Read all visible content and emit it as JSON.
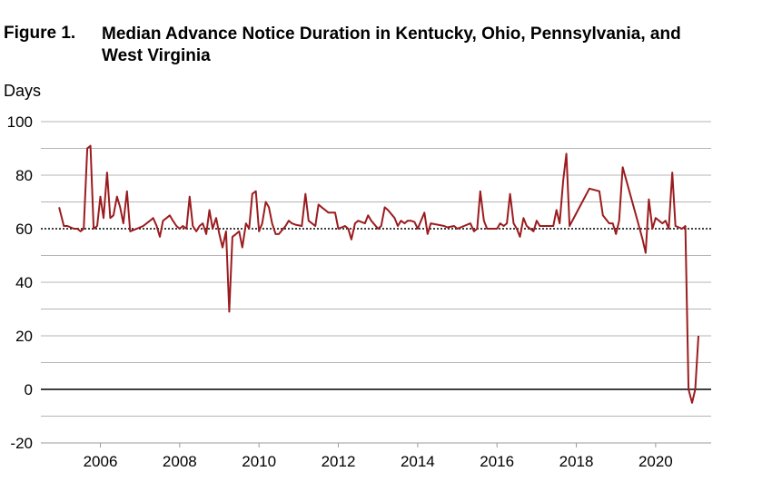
{
  "figure": {
    "label": "Figure 1.",
    "title": "Median Advance Notice Duration in Kentucky, Ohio, Pennsylvania, and West Virginia"
  },
  "chart_data": {
    "type": "line",
    "title": "Median Advance Notice Duration in Kentucky, Ohio, Pennsylvania, and West Virginia",
    "ylabel": "Days",
    "xlabel": "",
    "ylim": [
      -20,
      100
    ],
    "xlim": [
      2004.5,
      2020.9
    ],
    "yticks": [
      100,
      80,
      60,
      40,
      20,
      0,
      -20
    ],
    "xticks": [
      "2006",
      "2008",
      "2010",
      "2012",
      "2014",
      "2016",
      "2018",
      "2020"
    ],
    "grid": true,
    "reference_lines": [
      {
        "y": 60,
        "style": "dotted"
      },
      {
        "y": 0,
        "style": "solid"
      }
    ],
    "series": [
      {
        "color": "#9b1c1f",
        "points": [
          [
            2004.96,
            68
          ],
          [
            2005.08,
            61
          ],
          [
            2005.17,
            61
          ],
          [
            2005.25,
            60.5
          ],
          [
            2005.33,
            60
          ],
          [
            2005.42,
            60
          ],
          [
            2005.5,
            59
          ],
          [
            2005.58,
            60
          ],
          [
            2005.67,
            90
          ],
          [
            2005.75,
            91
          ],
          [
            2005.83,
            60
          ],
          [
            2005.92,
            61
          ],
          [
            2006.0,
            72
          ],
          [
            2006.08,
            64
          ],
          [
            2006.17,
            81
          ],
          [
            2006.25,
            64
          ],
          [
            2006.33,
            65
          ],
          [
            2006.42,
            72
          ],
          [
            2006.5,
            68
          ],
          [
            2006.58,
            62
          ],
          [
            2006.67,
            74
          ],
          [
            2006.75,
            59
          ],
          [
            2006.92,
            60
          ],
          [
            2007.08,
            61
          ],
          [
            2007.25,
            63
          ],
          [
            2007.33,
            64
          ],
          [
            2007.42,
            61
          ],
          [
            2007.5,
            57
          ],
          [
            2007.58,
            63
          ],
          [
            2007.67,
            64
          ],
          [
            2007.75,
            65
          ],
          [
            2007.83,
            63
          ],
          [
            2007.92,
            61
          ],
          [
            2008.0,
            60
          ],
          [
            2008.08,
            61
          ],
          [
            2008.17,
            60
          ],
          [
            2008.25,
            72
          ],
          [
            2008.33,
            61
          ],
          [
            2008.42,
            59
          ],
          [
            2008.5,
            61
          ],
          [
            2008.58,
            62
          ],
          [
            2008.67,
            58
          ],
          [
            2008.75,
            67
          ],
          [
            2008.83,
            60
          ],
          [
            2008.92,
            64
          ],
          [
            2009.0,
            58
          ],
          [
            2009.08,
            53
          ],
          [
            2009.17,
            59
          ],
          [
            2009.25,
            29
          ],
          [
            2009.33,
            57
          ],
          [
            2009.42,
            58
          ],
          [
            2009.5,
            59
          ],
          [
            2009.58,
            53
          ],
          [
            2009.67,
            62
          ],
          [
            2009.75,
            60
          ],
          [
            2009.83,
            73
          ],
          [
            2009.92,
            74
          ],
          [
            2010.0,
            59
          ],
          [
            2010.08,
            62
          ],
          [
            2010.17,
            70
          ],
          [
            2010.25,
            68
          ],
          [
            2010.33,
            62
          ],
          [
            2010.42,
            58
          ],
          [
            2010.5,
            58
          ],
          [
            2010.67,
            61
          ],
          [
            2010.75,
            63
          ],
          [
            2010.83,
            62
          ],
          [
            2010.92,
            61.5
          ],
          [
            2011.08,
            61
          ],
          [
            2011.17,
            73
          ],
          [
            2011.25,
            63
          ],
          [
            2011.42,
            61
          ],
          [
            2011.5,
            69
          ],
          [
            2011.58,
            68
          ],
          [
            2011.67,
            67
          ],
          [
            2011.75,
            66
          ],
          [
            2011.92,
            66
          ],
          [
            2012.0,
            60
          ],
          [
            2012.17,
            61
          ],
          [
            2012.25,
            60
          ],
          [
            2012.33,
            56
          ],
          [
            2012.42,
            62
          ],
          [
            2012.5,
            63
          ],
          [
            2012.67,
            62
          ],
          [
            2012.75,
            65
          ],
          [
            2012.83,
            63
          ],
          [
            2013.0,
            60
          ],
          [
            2013.08,
            61
          ],
          [
            2013.17,
            68
          ],
          [
            2013.25,
            67
          ],
          [
            2013.42,
            64
          ],
          [
            2013.5,
            61
          ],
          [
            2013.58,
            63
          ],
          [
            2013.67,
            62
          ],
          [
            2013.75,
            63
          ],
          [
            2013.83,
            63
          ],
          [
            2013.92,
            62.5
          ],
          [
            2014.0,
            60
          ],
          [
            2014.17,
            66
          ],
          [
            2014.25,
            58
          ],
          [
            2014.33,
            62
          ],
          [
            2014.67,
            61
          ],
          [
            2014.75,
            60.5
          ],
          [
            2014.92,
            61
          ],
          [
            2015.0,
            60
          ],
          [
            2015.17,
            61
          ],
          [
            2015.33,
            62
          ],
          [
            2015.42,
            59
          ],
          [
            2015.5,
            60
          ],
          [
            2015.58,
            74
          ],
          [
            2015.67,
            63
          ],
          [
            2015.75,
            60
          ],
          [
            2015.92,
            60
          ],
          [
            2016.0,
            60
          ],
          [
            2016.08,
            62
          ],
          [
            2016.17,
            61
          ],
          [
            2016.25,
            62
          ],
          [
            2016.33,
            73
          ],
          [
            2016.42,
            62
          ],
          [
            2016.5,
            60
          ],
          [
            2016.58,
            57
          ],
          [
            2016.67,
            64
          ],
          [
            2016.75,
            61
          ],
          [
            2016.92,
            59
          ],
          [
            2017.0,
            63
          ],
          [
            2017.08,
            61
          ],
          [
            2017.25,
            61
          ],
          [
            2017.42,
            61
          ],
          [
            2017.5,
            67
          ],
          [
            2017.58,
            62
          ],
          [
            2017.67,
            78
          ],
          [
            2017.75,
            88
          ],
          [
            2017.83,
            61
          ],
          [
            2018.08,
            68
          ],
          [
            2018.33,
            75
          ],
          [
            2018.58,
            74
          ],
          [
            2018.67,
            65
          ],
          [
            2018.83,
            62
          ],
          [
            2018.92,
            62
          ],
          [
            2019.0,
            58
          ],
          [
            2019.08,
            63
          ],
          [
            2019.17,
            83
          ],
          [
            2019.58,
            61
          ],
          [
            2019.67,
            56
          ],
          [
            2019.75,
            51
          ],
          [
            2019.83,
            71
          ],
          [
            2019.92,
            60
          ],
          [
            2020.0,
            64
          ],
          [
            2020.17,
            62
          ],
          [
            2020.25,
            63
          ],
          [
            2020.33,
            60
          ],
          [
            2020.42,
            81
          ],
          [
            2020.5,
            61
          ],
          [
            2020.67,
            60
          ],
          [
            2020.75,
            61
          ],
          [
            2020.83,
            0
          ],
          [
            2020.92,
            -5
          ],
          [
            2021.0,
            0
          ],
          [
            2021.08,
            20
          ]
        ]
      }
    ]
  }
}
